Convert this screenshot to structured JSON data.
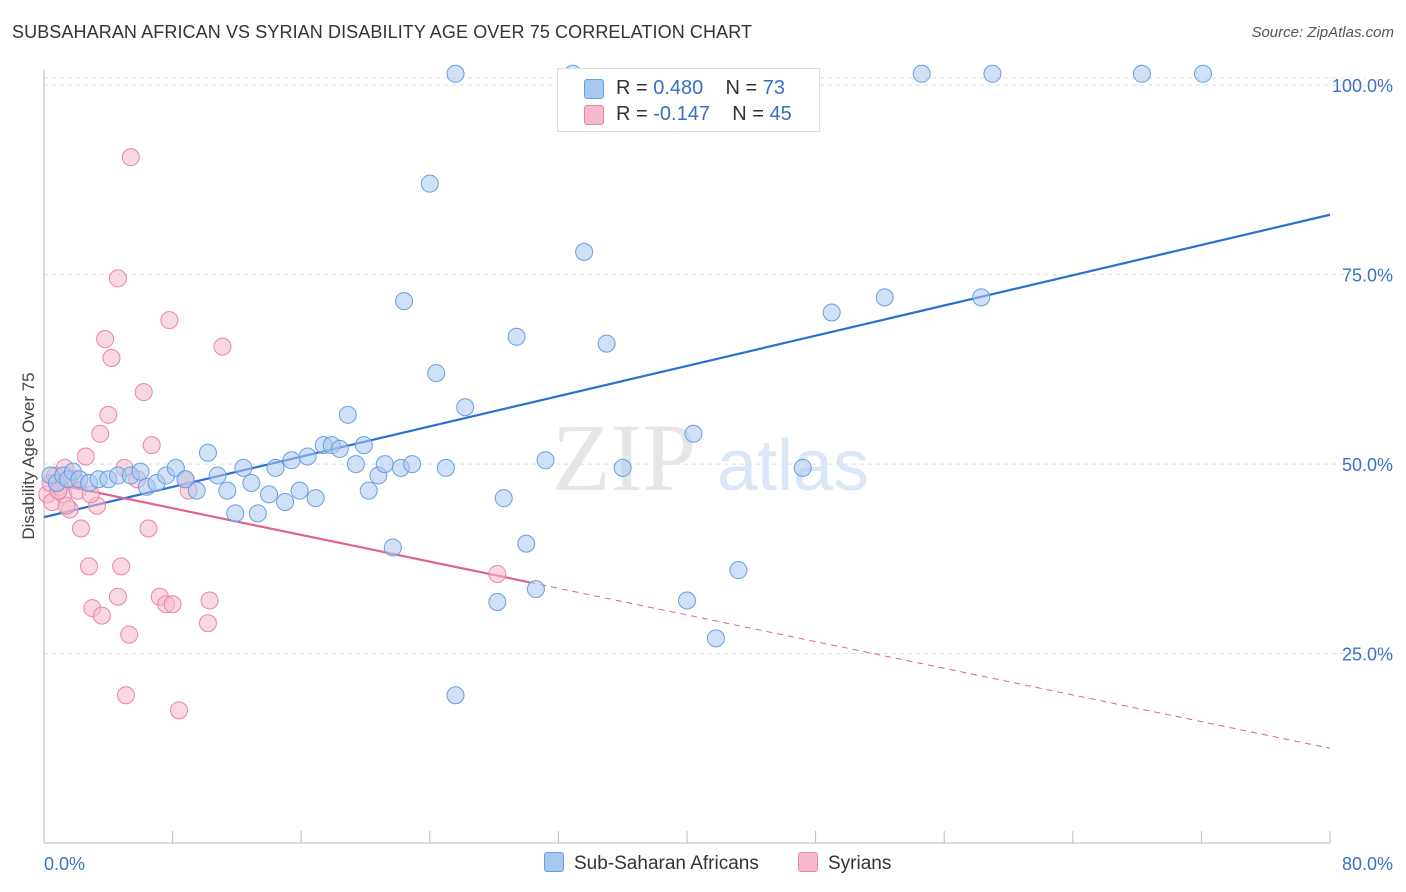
{
  "title": "SUBSAHARAN AFRICAN VS SYRIAN DISABILITY AGE OVER 75 CORRELATION CHART",
  "source": "Source: ZipAtlas.com",
  "watermark": {
    "zip": "ZIP",
    "atlas": "atlas"
  },
  "legend": {
    "rows": [
      {
        "r_label": "R = ",
        "r_value": "0.480",
        "n_label": "N = ",
        "n_value": "73",
        "color": "#a9c8f0"
      },
      {
        "r_label": "R = ",
        "r_value": "-0.147",
        "n_label": "N = ",
        "n_value": "45",
        "color": "#f6b8cb"
      }
    ]
  },
  "bottom_legend": [
    {
      "label": "Sub-Saharan Africans",
      "color": "#a9c8f0"
    },
    {
      "label": "Syrians",
      "color": "#f6b8cb"
    }
  ],
  "chart_data": {
    "type": "scatter",
    "title": "SUBSAHARAN AFRICAN VS SYRIAN DISABILITY AGE OVER 75 CORRELATION CHART",
    "xlabel": "",
    "ylabel": "Disability Age Over 75",
    "xlim": [
      0,
      80
    ],
    "ylim": [
      0,
      102
    ],
    "x_tick_labels": [
      "0.0%",
      "80.0%"
    ],
    "y_ticks": [
      25,
      50,
      75,
      100
    ],
    "y_tick_labels": [
      "25.0%",
      "50.0%",
      "75.0%",
      "100.0%"
    ],
    "grid": true,
    "legend_position": "top-center",
    "series": [
      {
        "name": "Sub-Saharan Africans",
        "color": "#a9c8f0",
        "stroke": "#6a9ee0",
        "trend": {
          "x": [
            0,
            80
          ],
          "y": [
            43.0,
            82.9
          ],
          "color": "#2b6fd0"
        },
        "points": [
          [
            0.4,
            48.5
          ],
          [
            0.8,
            47.5
          ],
          [
            1.2,
            48.5
          ],
          [
            1.5,
            48.0
          ],
          [
            1.8,
            49.0
          ],
          [
            2.2,
            48.0
          ],
          [
            2.8,
            47.5
          ],
          [
            3.4,
            48.0
          ],
          [
            4.0,
            48.0
          ],
          [
            4.6,
            48.5
          ],
          [
            5.4,
            48.5
          ],
          [
            6.0,
            49.0
          ],
          [
            6.4,
            47.0
          ],
          [
            7.0,
            47.5
          ],
          [
            7.6,
            48.5
          ],
          [
            8.2,
            49.5
          ],
          [
            8.8,
            48.0
          ],
          [
            9.5,
            46.5
          ],
          [
            10.2,
            51.5
          ],
          [
            10.8,
            48.5
          ],
          [
            11.4,
            46.5
          ],
          [
            11.9,
            43.5
          ],
          [
            12.4,
            49.5
          ],
          [
            12.9,
            47.5
          ],
          [
            13.3,
            43.5
          ],
          [
            14.0,
            46.0
          ],
          [
            14.4,
            49.5
          ],
          [
            15.0,
            45.0
          ],
          [
            15.4,
            50.5
          ],
          [
            15.9,
            46.5
          ],
          [
            16.4,
            51.0
          ],
          [
            16.9,
            45.5
          ],
          [
            17.4,
            52.5
          ],
          [
            17.9,
            52.5
          ],
          [
            18.4,
            52.0
          ],
          [
            18.9,
            56.5
          ],
          [
            19.4,
            50.0
          ],
          [
            19.9,
            52.5
          ],
          [
            20.2,
            46.5
          ],
          [
            20.8,
            48.5
          ],
          [
            21.2,
            50.0
          ],
          [
            21.7,
            39.0
          ],
          [
            22.2,
            49.5
          ],
          [
            22.4,
            71.5
          ],
          [
            22.9,
            50.0
          ],
          [
            24.0,
            87.0
          ],
          [
            24.4,
            62.0
          ],
          [
            25.0,
            49.5
          ],
          [
            25.6,
            101.5
          ],
          [
            25.6,
            19.5
          ],
          [
            26.2,
            57.5
          ],
          [
            28.2,
            31.8
          ],
          [
            28.6,
            45.5
          ],
          [
            29.4,
            66.8
          ],
          [
            30.0,
            39.5
          ],
          [
            30.6,
            33.5
          ],
          [
            31.2,
            50.5
          ],
          [
            32.9,
            101.5
          ],
          [
            33.6,
            78.0
          ],
          [
            35.0,
            65.9
          ],
          [
            36.0,
            49.5
          ],
          [
            40.4,
            54.0
          ],
          [
            40.0,
            32.0
          ],
          [
            41.8,
            27.0
          ],
          [
            43.2,
            36.0
          ],
          [
            47.2,
            49.5
          ],
          [
            49.0,
            70.0
          ],
          [
            52.3,
            72.0
          ],
          [
            54.6,
            101.5
          ],
          [
            59.0,
            101.5
          ],
          [
            58.3,
            72.0
          ],
          [
            68.3,
            101.5
          ],
          [
            72.1,
            101.5
          ]
        ]
      },
      {
        "name": "Syrians",
        "color": "#f6b8cb",
        "stroke": "#e985a8",
        "trend": {
          "x": [
            0,
            30.2
          ],
          "y": [
            47.7,
            34.4
          ],
          "color": "#e0628f"
        },
        "trend_extension": {
          "x": [
            30.2,
            80
          ],
          "y": [
            34.4,
            12.5
          ]
        },
        "points": [
          [
            0.2,
            46.0
          ],
          [
            0.4,
            47.5
          ],
          [
            0.5,
            45.0
          ],
          [
            0.7,
            48.5
          ],
          [
            1.0,
            47.0
          ],
          [
            1.2,
            46.0
          ],
          [
            1.3,
            49.5
          ],
          [
            1.6,
            44.0
          ],
          [
            1.9,
            48.0
          ],
          [
            2.1,
            46.5
          ],
          [
            2.3,
            41.5
          ],
          [
            2.6,
            51.0
          ],
          [
            2.8,
            36.5
          ],
          [
            3.0,
            31.0
          ],
          [
            3.3,
            44.5
          ],
          [
            3.5,
            54.0
          ],
          [
            3.6,
            30.0
          ],
          [
            3.8,
            66.5
          ],
          [
            4.0,
            56.5
          ],
          [
            4.2,
            64.0
          ],
          [
            4.6,
            74.5
          ],
          [
            4.8,
            36.5
          ],
          [
            5.0,
            49.5
          ],
          [
            5.1,
            19.5
          ],
          [
            5.3,
            27.5
          ],
          [
            5.4,
            90.5
          ],
          [
            5.8,
            48.0
          ],
          [
            6.2,
            59.5
          ],
          [
            6.5,
            41.5
          ],
          [
            6.7,
            52.5
          ],
          [
            7.2,
            32.5
          ],
          [
            7.6,
            31.5
          ],
          [
            7.8,
            69.0
          ],
          [
            8.0,
            31.5
          ],
          [
            8.4,
            17.5
          ],
          [
            8.8,
            48.0
          ],
          [
            9.0,
            46.5
          ],
          [
            10.2,
            29.0
          ],
          [
            10.3,
            32.0
          ],
          [
            11.1,
            65.5
          ],
          [
            4.6,
            32.5
          ],
          [
            2.9,
            46.0
          ],
          [
            1.4,
            44.5
          ],
          [
            0.9,
            46.5
          ],
          [
            28.2,
            35.5
          ]
        ]
      }
    ]
  }
}
